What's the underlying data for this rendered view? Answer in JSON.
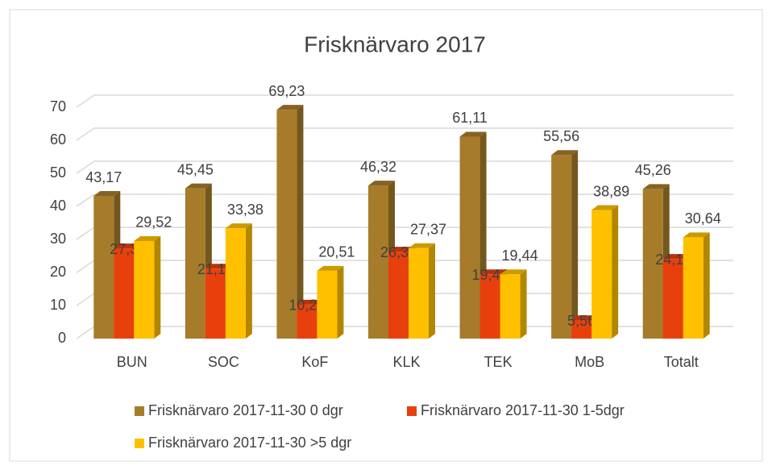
{
  "chart_data": {
    "type": "bar3d",
    "title": "Frisknärvaro 2017",
    "categories": [
      "BUN",
      "SOC",
      "KoF",
      "KLK",
      "TEK",
      "MoB",
      "Totalt"
    ],
    "series": [
      {
        "name": "Frisknärvaro 2017-11-30 0 dgr",
        "color": "#a67c2a",
        "values": [
          43.17,
          45.45,
          69.23,
          46.32,
          61.11,
          55.56,
          45.26
        ],
        "value_labels": [
          "43,17",
          "45,45",
          "69,23",
          "46,32",
          "61,11",
          "55,56",
          "45,26"
        ]
      },
      {
        "name": "Frisknärvaro 2017-11-30 1-5dgr",
        "color": "#e8400c",
        "values": [
          27.3,
          21.16,
          10.26,
          26.32,
          19.44,
          5.56,
          24.11
        ],
        "value_labels": [
          "27,3",
          "21,16",
          "10,26",
          "26,32",
          "19,44",
          "5,56",
          "24,11"
        ]
      },
      {
        "name": "Frisknärvaro 2017-11-30 >5 dgr",
        "color": "#ffc000",
        "values": [
          29.52,
          33.38,
          20.51,
          27.37,
          19.44,
          38.89,
          30.64
        ],
        "value_labels": [
          "29,52",
          "33,38",
          "20,51",
          "27,37",
          "19,44",
          "38,89",
          "30,64"
        ]
      }
    ],
    "ylim": [
      0,
      70
    ],
    "yticks": [
      0,
      10,
      20,
      30,
      40,
      50,
      60,
      70
    ],
    "grid": true,
    "legend": "bottom"
  }
}
